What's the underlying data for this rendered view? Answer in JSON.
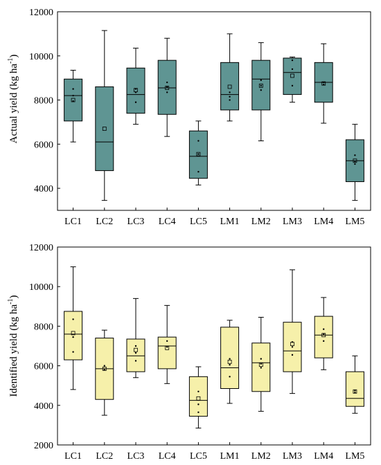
{
  "chart_data": [
    {
      "type": "box",
      "ylabel": "Actual yield (kg ha⁻¹)",
      "ylabel_main": "Actual yield (kg ha",
      "ylabel_sup": "-1",
      "ylabel_close": ")",
      "ylim": [
        3000,
        12000
      ],
      "yticks": [
        4000,
        6000,
        8000,
        10000,
        12000
      ],
      "box_color": "#5f9593",
      "categories": [
        "LC1",
        "LC2",
        "LC3",
        "LC4",
        "LC5",
        "LM1",
        "LM2",
        "LM3",
        "LM4",
        "LM5"
      ],
      "boxes": [
        {
          "min": 6100,
          "q1": 7050,
          "median": 8200,
          "q3": 8950,
          "max": 9350,
          "mean": 8000,
          "points": [
            8500,
            8200,
            7950
          ]
        },
        {
          "min": 3450,
          "q1": 4800,
          "median": 6100,
          "q3": 8600,
          "max": 11150,
          "mean": 6700,
          "points": []
        },
        {
          "min": 6900,
          "q1": 7400,
          "median": 8250,
          "q3": 9450,
          "max": 10350,
          "mean": 8450,
          "points": [
            8500,
            8350,
            7900
          ]
        },
        {
          "min": 6350,
          "q1": 7350,
          "median": 8550,
          "q3": 9800,
          "max": 10800,
          "mean": 8550,
          "points": [
            8800,
            8600,
            8350
          ]
        },
        {
          "min": 4150,
          "q1": 4450,
          "median": 5450,
          "q3": 6600,
          "max": 7050,
          "mean": 5550,
          "points": [
            6150,
            5550,
            4750
          ]
        },
        {
          "min": 7050,
          "q1": 7550,
          "median": 8250,
          "q3": 9700,
          "max": 11000,
          "mean": 8600,
          "points": [
            8350,
            8150,
            8000
          ]
        },
        {
          "min": 6150,
          "q1": 7550,
          "median": 8950,
          "q3": 9800,
          "max": 10600,
          "mean": 8650,
          "points": [
            8900,
            8650,
            8450
          ]
        },
        {
          "min": 7900,
          "q1": 8250,
          "median": 9250,
          "q3": 9900,
          "max": 9950,
          "mean": 9100,
          "points": [
            9800,
            9400,
            8650
          ]
        },
        {
          "min": 6950,
          "q1": 7900,
          "median": 8800,
          "q3": 9700,
          "max": 10550,
          "mean": 8750,
          "points": [
            8800,
            8700
          ]
        },
        {
          "min": 3450,
          "q1": 4300,
          "median": 5250,
          "q3": 6200,
          "max": 6900,
          "mean": 5250,
          "points": [
            5500,
            5200,
            5100
          ]
        }
      ]
    },
    {
      "type": "box",
      "ylabel": "Identified yield (kg ha⁻¹)",
      "ylabel_main": "Identified yield (kg ha",
      "ylabel_sup": "-1",
      "ylabel_close": ")",
      "ylim": [
        2000,
        12000
      ],
      "yticks": [
        2000,
        4000,
        6000,
        8000,
        10000,
        12000
      ],
      "box_color": "#f6f0aa",
      "categories": [
        "LC1",
        "LC2",
        "LC3",
        "LC4",
        "LC5",
        "LM1",
        "LM2",
        "LM3",
        "LM4",
        "LM5"
      ],
      "boxes": [
        {
          "min": 4800,
          "q1": 6300,
          "median": 7600,
          "q3": 8750,
          "max": 11000,
          "mean": 7650,
          "points": [
            8350,
            7450,
            6700
          ]
        },
        {
          "min": 3500,
          "q1": 4300,
          "median": 5850,
          "q3": 7400,
          "max": 7800,
          "mean": 5850,
          "points": [
            6000,
            5800
          ]
        },
        {
          "min": 5400,
          "q1": 5700,
          "median": 6500,
          "q3": 7350,
          "max": 9400,
          "mean": 6800,
          "points": [
            7000,
            6650,
            6250
          ]
        },
        {
          "min": 5100,
          "q1": 5850,
          "median": 7000,
          "q3": 7450,
          "max": 9050,
          "mean": 6900,
          "points": [
            7250,
            6950
          ]
        },
        {
          "min": 2850,
          "q1": 3450,
          "median": 4250,
          "q3": 5450,
          "max": 5950,
          "mean": 4350,
          "points": [
            4700,
            4050,
            3650
          ]
        },
        {
          "min": 4100,
          "q1": 4850,
          "median": 5900,
          "q3": 7950,
          "max": 8300,
          "mean": 6200,
          "points": [
            6350,
            6050,
            5450
          ]
        },
        {
          "min": 3700,
          "q1": 4700,
          "median": 6150,
          "q3": 7150,
          "max": 8450,
          "mean": 6050,
          "points": [
            6350,
            6100,
            5900
          ]
        },
        {
          "min": 4600,
          "q1": 5700,
          "median": 6750,
          "q3": 8200,
          "max": 10850,
          "mean": 7100,
          "points": [
            7200,
            6950,
            6550
          ]
        },
        {
          "min": 5800,
          "q1": 6400,
          "median": 7550,
          "q3": 8500,
          "max": 9450,
          "mean": 7550,
          "points": [
            7850,
            7600,
            7250
          ]
        },
        {
          "min": 3600,
          "q1": 3950,
          "median": 4350,
          "q3": 5700,
          "max": 6500,
          "mean": 4700,
          "points": [
            4750,
            4650
          ]
        }
      ]
    }
  ]
}
